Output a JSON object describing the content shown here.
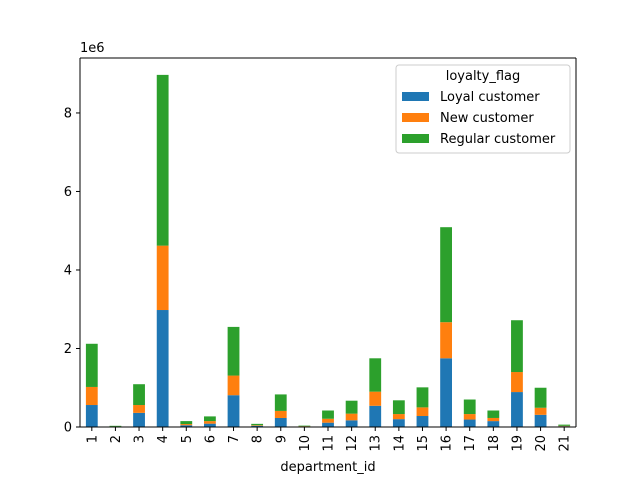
{
  "chart_data": {
    "type": "bar",
    "stacked": true,
    "title": "",
    "xlabel": "department_id",
    "ylabel": "",
    "y_scale_label": "1e6",
    "ylim": [
      0,
      9400000
    ],
    "yticks": [
      0,
      2000000,
      4000000,
      6000000,
      8000000
    ],
    "ytick_labels": [
      "0",
      "2",
      "4",
      "6",
      "8"
    ],
    "grid": false,
    "legend_title": "loyalty_flag",
    "legend_position": "top-right",
    "categories": [
      "1",
      "2",
      "3",
      "4",
      "5",
      "6",
      "7",
      "8",
      "9",
      "10",
      "11",
      "12",
      "13",
      "14",
      "15",
      "16",
      "17",
      "18",
      "19",
      "20",
      "21"
    ],
    "series": [
      {
        "name": "Loyal customer",
        "color": "#1f77b4",
        "values": [
          560000,
          10000,
          360000,
          2980000,
          45000,
          85000,
          810000,
          30000,
          230000,
          10000,
          110000,
          170000,
          540000,
          200000,
          280000,
          1750000,
          190000,
          150000,
          890000,
          310000,
          20000
        ]
      },
      {
        "name": "New customer",
        "color": "#ff7f0e",
        "values": [
          460000,
          5000,
          200000,
          1640000,
          30000,
          65000,
          500000,
          15000,
          180000,
          10000,
          100000,
          170000,
          360000,
          130000,
          220000,
          920000,
          140000,
          80000,
          510000,
          180000,
          10000
        ]
      },
      {
        "name": "Regular customer",
        "color": "#2ca02c",
        "values": [
          1100000,
          15000,
          530000,
          4350000,
          75000,
          120000,
          1240000,
          35000,
          420000,
          15000,
          210000,
          330000,
          850000,
          350000,
          510000,
          2420000,
          370000,
          190000,
          1320000,
          510000,
          30000
        ]
      }
    ]
  }
}
